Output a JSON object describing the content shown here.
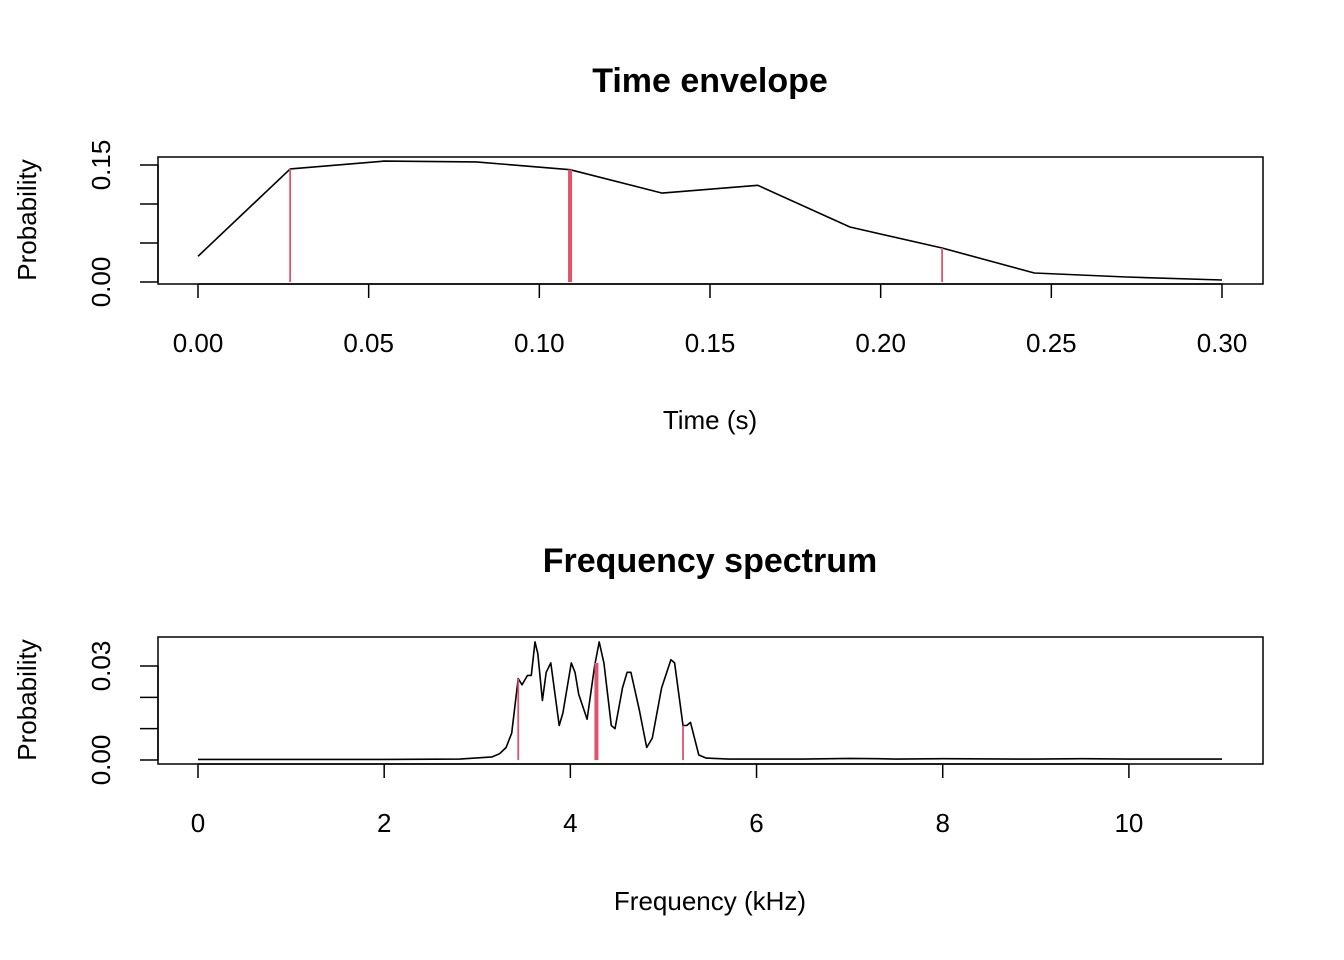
{
  "chart_data": [
    {
      "type": "line",
      "title": "Time envelope",
      "xlabel": "Time (s)",
      "ylabel": "Probability",
      "xlim": [
        0,
        0.3
      ],
      "ylim": [
        0,
        0.15
      ],
      "xticks": [
        "0.00",
        "0.05",
        "0.10",
        "0.15",
        "0.20",
        "0.25",
        "0.30"
      ],
      "xtick_values": [
        0,
        0.05,
        0.1,
        0.15,
        0.2,
        0.25,
        0.3
      ],
      "yticks": [
        "0.00",
        "0.15"
      ],
      "ytick_values": [
        0,
        0.05,
        0.1,
        0.15
      ],
      "series": [
        {
          "name": "envelope",
          "color": "#000000",
          "x": [
            0,
            0.027,
            0.0545,
            0.0815,
            0.109,
            0.136,
            0.164,
            0.191,
            0.218,
            0.245,
            0.272,
            0.3
          ],
          "y": [
            0.033,
            0.145,
            0.155,
            0.154,
            0.144,
            0.114,
            0.124,
            0.0705,
            0.0436,
            0.0115,
            0.0064,
            0.0026
          ]
        }
      ],
      "markers": {
        "color": "#DF536B",
        "x": [
          0.027,
          0.109,
          0.218
        ],
        "y": [
          0.145,
          0.144,
          0.0436
        ],
        "thick": [
          false,
          true,
          false
        ]
      }
    },
    {
      "type": "line",
      "title": "Frequency spectrum",
      "xlabel": "Frequency (kHz)",
      "ylabel": "Probability",
      "xlim": [
        0,
        11
      ],
      "ylim": [
        0,
        0.0377
      ],
      "xticks": [
        "0",
        "2",
        "4",
        "6",
        "8",
        "10"
      ],
      "xtick_values": [
        0,
        2,
        4,
        6,
        8,
        10
      ],
      "yticks": [
        "0.00",
        "0.03"
      ],
      "ytick_values": [
        0,
        0.01,
        0.02,
        0.03
      ],
      "series": [
        {
          "name": "spectrum",
          "color": "#000000",
          "x": [
            0,
            1,
            2,
            2.81,
            3.16,
            3.24,
            3.31,
            3.37,
            3.44,
            3.48,
            3.54,
            3.58,
            3.62,
            3.65,
            3.7,
            3.74,
            3.79,
            3.88,
            3.92,
            4.01,
            4.05,
            4.09,
            4.18,
            4.26,
            4.31,
            4.36,
            4.44,
            4.48,
            4.56,
            4.61,
            4.65,
            4.74,
            4.82,
            4.88,
            4.98,
            5.08,
            5.12,
            5.21,
            5.25,
            5.29,
            5.38,
            5.46,
            5.7,
            6.5,
            7.0,
            7.3,
            7.5,
            8,
            9,
            9.5,
            10,
            11
          ],
          "y": [
            0.0002,
            0.0002,
            0.0002,
            0.0003,
            0.001,
            0.002,
            0.004,
            0.0086,
            0.026,
            0.024,
            0.027,
            0.027,
            0.0377,
            0.034,
            0.019,
            0.028,
            0.031,
            0.011,
            0.015,
            0.031,
            0.028,
            0.021,
            0.013,
            0.03,
            0.0377,
            0.031,
            0.011,
            0.01,
            0.023,
            0.028,
            0.028,
            0.016,
            0.004,
            0.007,
            0.023,
            0.032,
            0.031,
            0.011,
            0.011,
            0.012,
            0.0016,
            0.0006,
            0.0003,
            0.0003,
            0.0005,
            0.0004,
            0.0003,
            0.0004,
            0.0003,
            0.0004,
            0.0003,
            0.0003
          ]
        }
      ],
      "markers": {
        "color": "#DF536B",
        "x": [
          3.44,
          4.28,
          5.21
        ],
        "y": [
          0.026,
          0.031,
          0.011
        ],
        "thick": [
          false,
          true,
          false
        ]
      }
    }
  ]
}
